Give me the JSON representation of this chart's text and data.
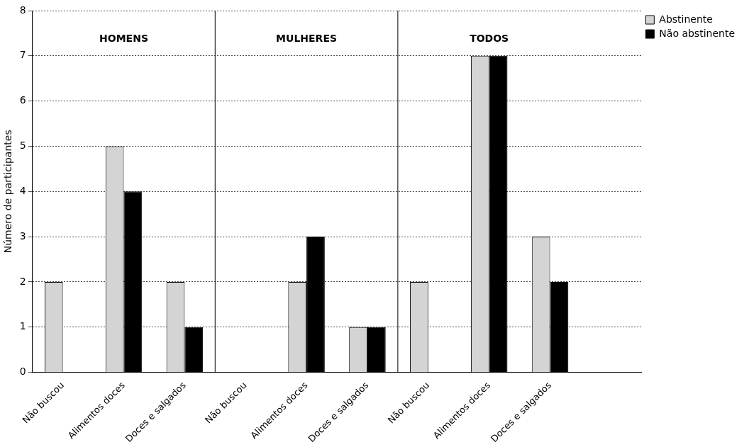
{
  "chart_data": {
    "type": "bar",
    "ylabel": "Número de participantes",
    "categories": [
      "Não buscou",
      "Alimentos doces",
      "Doces e salgados",
      "Não buscou",
      "Alimentos doces",
      "Doces e salgados",
      "Não buscou",
      "Alimentos doces",
      "Doces e salgados",
      null
    ],
    "series": [
      {
        "name": "Abstinente",
        "color": "#d4d4d4",
        "values": [
          2,
          5,
          2,
          0,
          2,
          1,
          2,
          7,
          3,
          null
        ]
      },
      {
        "name": "Não abstinente",
        "color": "#000000",
        "values": [
          0,
          4,
          1,
          0,
          3,
          1,
          0,
          7,
          2,
          null
        ]
      }
    ],
    "ylim": [
      0,
      8
    ],
    "yticks": [
      0,
      1,
      2,
      3,
      4,
      5,
      6,
      7,
      8
    ],
    "grid": "y",
    "legend": "top right",
    "annotations": [
      "HOMENS",
      "MULHERES",
      "TODOS"
    ]
  }
}
